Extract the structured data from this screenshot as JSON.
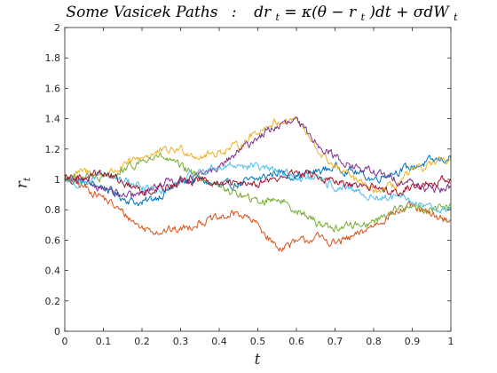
{
  "chart_data": {
    "type": "line",
    "title_parts": {
      "lead": "Some Vasicek Paths",
      "sep": ":",
      "eq_pre": "dr",
      "eq_pre_sub": "t",
      "eq_mid": " = κ(θ − r",
      "eq_mid_sub": "t",
      "eq_post": ")dt + σdW",
      "eq_post_sub": "t"
    },
    "xlabel": "t",
    "ylabel": "r",
    "ylabel_sub": "t",
    "xlim": [
      0,
      1
    ],
    "ylim": [
      0,
      2
    ],
    "xticks": [
      0,
      0.1,
      0.2,
      0.3,
      0.4,
      0.5,
      0.6,
      0.7,
      0.8,
      0.9,
      1
    ],
    "xtick_labels": [
      "0",
      "0.1",
      "0.2",
      "0.3",
      "0.4",
      "0.5",
      "0.6",
      "0.7",
      "0.8",
      "0.9",
      "1"
    ],
    "yticks": [
      0,
      0.2,
      0.4,
      0.6,
      0.8,
      1,
      1.2,
      1.4,
      1.6,
      1.8,
      2
    ],
    "ytick_labels": [
      "0",
      "0.2",
      "0.4",
      "0.6",
      "0.8",
      "1",
      "1.2",
      "1.4",
      "1.6",
      "1.8",
      "2"
    ],
    "grid": false,
    "x": [
      0,
      0.05,
      0.1,
      0.15,
      0.2,
      0.25,
      0.3,
      0.35,
      0.4,
      0.45,
      0.5,
      0.55,
      0.6,
      0.65,
      0.7,
      0.75,
      0.8,
      0.85,
      0.9,
      0.95,
      1
    ],
    "series": [
      {
        "color": "#0072BD",
        "values": [
          1.0,
          0.98,
          0.95,
          0.88,
          0.84,
          0.9,
          0.98,
          1.0,
          0.95,
          0.97,
          1.0,
          1.05,
          1.02,
          1.05,
          1.08,
          1.05,
          1.0,
          1.05,
          1.08,
          1.12,
          1.14
        ]
      },
      {
        "color": "#D95319",
        "values": [
          1.0,
          0.95,
          0.88,
          0.78,
          0.68,
          0.66,
          0.67,
          0.72,
          0.74,
          0.78,
          0.7,
          0.55,
          0.58,
          0.62,
          0.58,
          0.62,
          0.7,
          0.78,
          0.82,
          0.76,
          0.73
        ]
      },
      {
        "color": "#EDB120",
        "values": [
          1.0,
          1.05,
          1.03,
          1.08,
          1.15,
          1.18,
          1.2,
          1.15,
          1.18,
          1.22,
          1.32,
          1.38,
          1.4,
          1.2,
          1.08,
          1.0,
          0.92,
          0.95,
          1.05,
          1.1,
          1.12
        ]
      },
      {
        "color": "#7E2F8E",
        "values": [
          1.0,
          0.98,
          0.95,
          0.88,
          0.9,
          0.98,
          1.0,
          1.02,
          1.08,
          1.18,
          1.28,
          1.35,
          1.38,
          1.25,
          1.15,
          1.08,
          1.05,
          1.0,
          0.98,
          0.92,
          0.95
        ]
      },
      {
        "color": "#77AC30",
        "values": [
          1.0,
          1.02,
          1.0,
          1.05,
          1.12,
          1.15,
          1.08,
          1.02,
          0.95,
          0.9,
          0.85,
          0.88,
          0.8,
          0.72,
          0.68,
          0.7,
          0.72,
          0.8,
          0.82,
          0.8,
          0.84
        ]
      },
      {
        "color": "#4DBEEE",
        "values": [
          1.0,
          0.98,
          1.02,
          1.0,
          0.95,
          0.92,
          0.98,
          1.05,
          1.08,
          1.1,
          1.08,
          1.05,
          1.02,
          1.0,
          0.95,
          0.92,
          0.88,
          0.88,
          0.85,
          0.82,
          0.8
        ]
      },
      {
        "color": "#A2142F",
        "values": [
          1.0,
          1.02,
          1.05,
          0.98,
          0.92,
          0.95,
          0.98,
          1.0,
          0.96,
          0.98,
          0.98,
          1.0,
          1.05,
          1.02,
          0.98,
          0.95,
          0.95,
          0.92,
          0.95,
          0.98,
          1.0
        ]
      }
    ]
  }
}
